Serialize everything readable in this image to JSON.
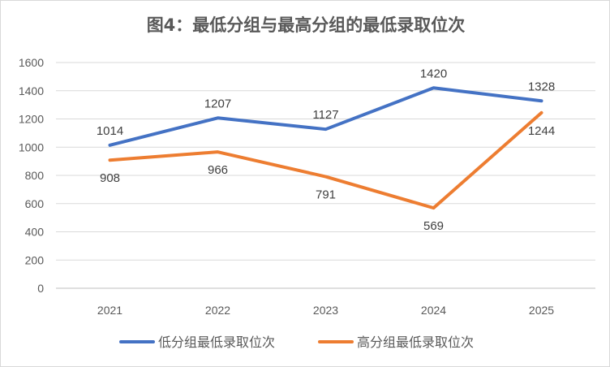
{
  "chart_data": {
    "type": "line",
    "title": "图4：最低分组与最高分组的最低录取位次",
    "categories": [
      "2021",
      "2022",
      "2023",
      "2024",
      "2025"
    ],
    "ylim": [
      0,
      1600
    ],
    "yticks": [
      "0",
      "200",
      "400",
      "600",
      "800",
      "1000",
      "1200",
      "1400",
      "1600"
    ],
    "grid": true,
    "legend_position": "bottom",
    "series": [
      {
        "name": "低分组最低录取位次",
        "color": "#4472c4",
        "values": [
          1014,
          1207,
          1127,
          1420,
          1328
        ],
        "labels": [
          "1014",
          "1207",
          "1127",
          "1420",
          "1328"
        ]
      },
      {
        "name": "高分组最低录取位次",
        "color": "#ed7d31",
        "values": [
          908,
          966,
          791,
          569,
          1244
        ],
        "labels": [
          "908",
          "966",
          "791",
          "569",
          "1244"
        ]
      }
    ]
  }
}
